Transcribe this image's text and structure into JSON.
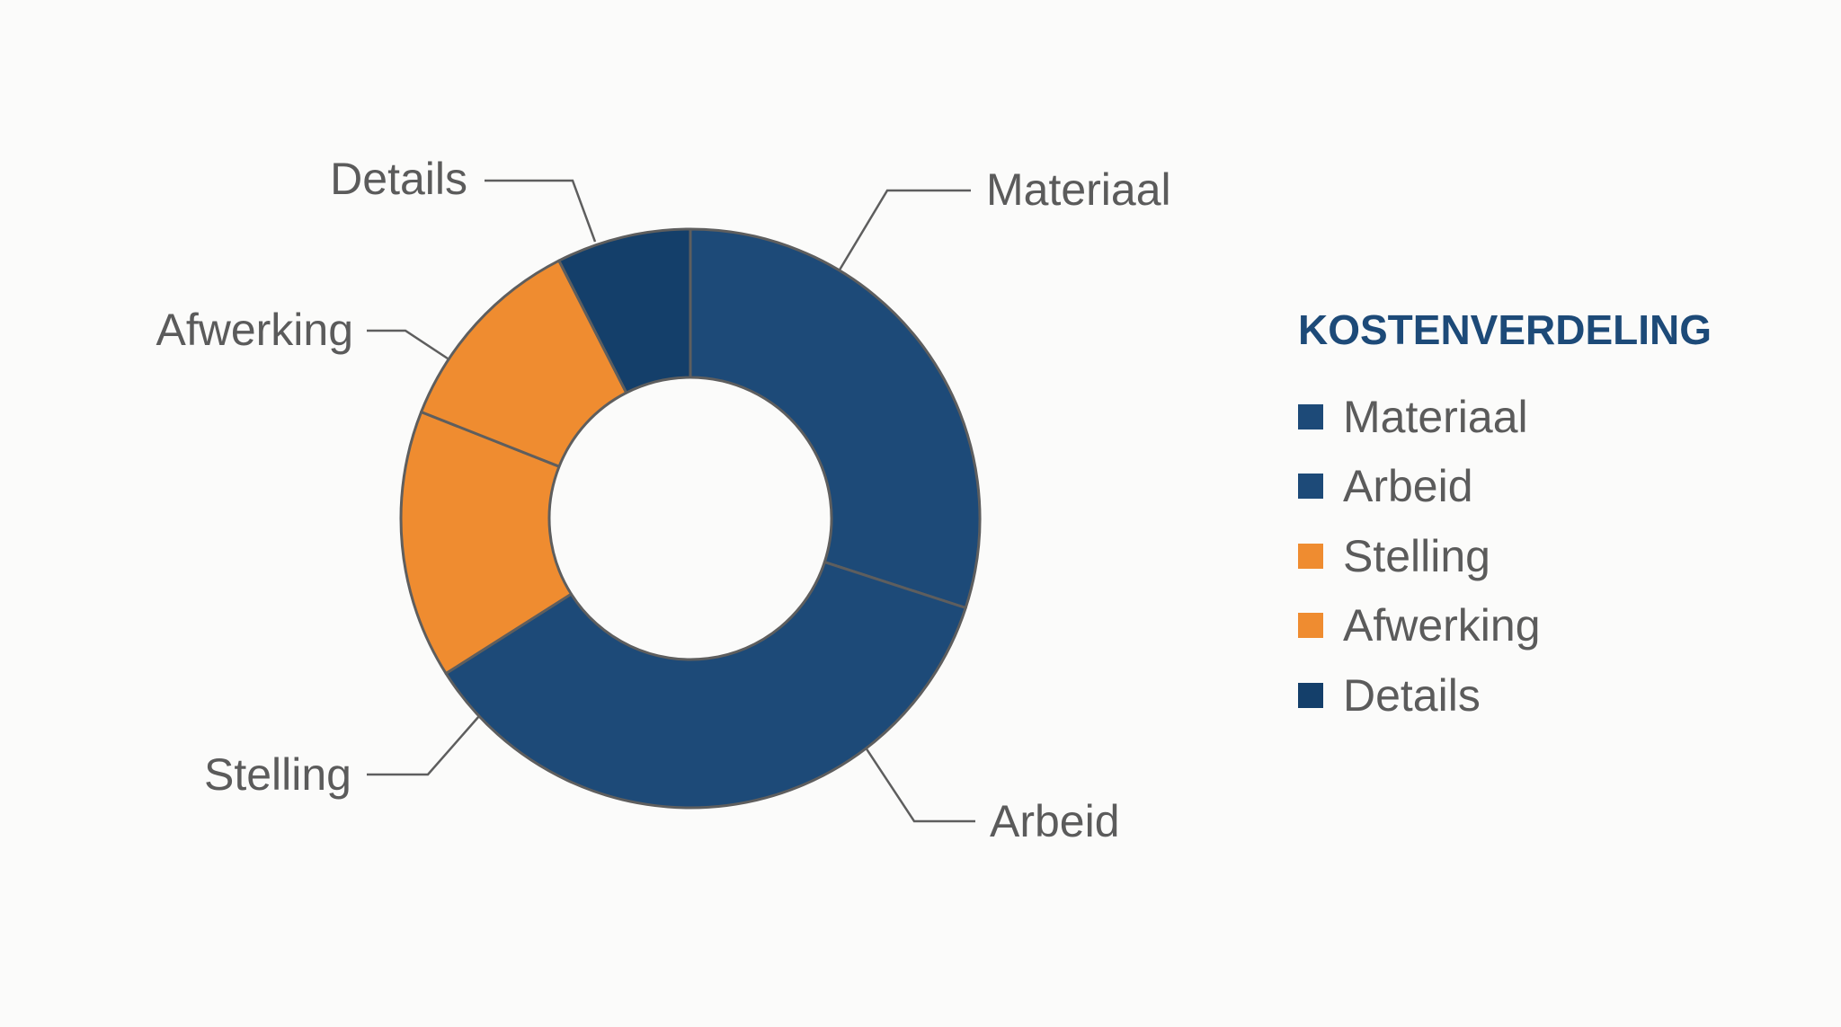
{
  "chart_data": {
    "type": "pie",
    "title": "KOSTENVERDELING",
    "categories": [
      "Materiaal",
      "Arbeid",
      "Stelling",
      "Afwerking",
      "Details"
    ],
    "values": [
      30.0,
      36.0,
      15.0,
      11.5,
      7.5
    ],
    "unit": "%",
    "colors": [
      "#1d4a78",
      "#1d4a78",
      "#ef8c30",
      "#ef8c30",
      "#143f6a"
    ],
    "donut": true,
    "legend_position": "right"
  }
}
